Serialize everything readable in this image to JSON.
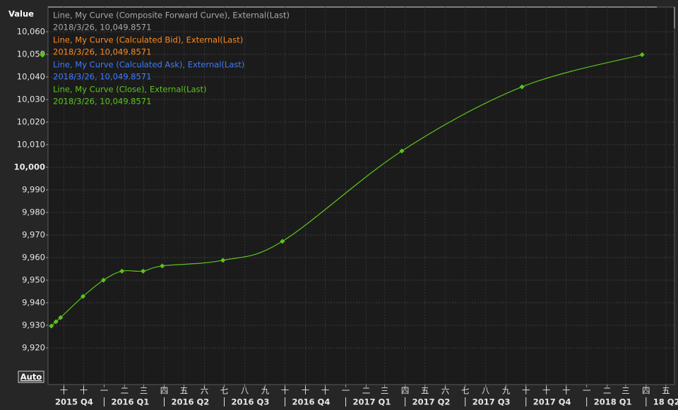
{
  "chart_data": {
    "type": "line",
    "ylabel": "Value",
    "button": "Auto",
    "grid": true,
    "ylim": [
      9903.75,
      10070.94
    ],
    "yticks": [
      {
        "value": 9920,
        "label": "9,920"
      },
      {
        "value": 9930,
        "label": "9,930"
      },
      {
        "value": 9940,
        "label": "9,940"
      },
      {
        "value": 9950,
        "label": "9,950"
      },
      {
        "value": 9960,
        "label": "9,960"
      },
      {
        "value": 9970,
        "label": "9,970"
      },
      {
        "value": 9980,
        "label": "9,980"
      },
      {
        "value": 9990,
        "label": "9,990"
      },
      {
        "value": 10000,
        "label": "10,000",
        "bold": true
      },
      {
        "value": 10010,
        "label": "10,010"
      },
      {
        "value": 10020,
        "label": "10,020"
      },
      {
        "value": 10030,
        "label": "10,030"
      },
      {
        "value": 10040,
        "label": "10,040"
      },
      {
        "value": 10050,
        "label": "10,050"
      },
      {
        "value": 10060,
        "label": "10,060"
      }
    ],
    "xlim": [
      "2015-10-08",
      "2018-05-14"
    ],
    "xticks": [
      {
        "value": "2015-11-01",
        "label": "十"
      },
      {
        "value": "2015-12-01",
        "label": "十"
      },
      {
        "value": "2016-01-01",
        "label": "一"
      },
      {
        "value": "2016-02-01",
        "label": "二"
      },
      {
        "value": "2016-03-01",
        "label": "三"
      },
      {
        "value": "2016-04-01",
        "label": "四"
      },
      {
        "value": "2016-05-01",
        "label": "五"
      },
      {
        "value": "2016-06-01",
        "label": "六"
      },
      {
        "value": "2016-07-01",
        "label": "七"
      },
      {
        "value": "2016-08-01",
        "label": "八"
      },
      {
        "value": "2016-09-01",
        "label": "九"
      },
      {
        "value": "2016-10-01",
        "label": "十"
      },
      {
        "value": "2016-11-01",
        "label": "十"
      },
      {
        "value": "2016-12-01",
        "label": "十"
      },
      {
        "value": "2017-01-01",
        "label": "一"
      },
      {
        "value": "2017-02-01",
        "label": "二"
      },
      {
        "value": "2017-03-01",
        "label": "三"
      },
      {
        "value": "2017-04-01",
        "label": "四"
      },
      {
        "value": "2017-05-01",
        "label": "五"
      },
      {
        "value": "2017-06-01",
        "label": "六"
      },
      {
        "value": "2017-07-01",
        "label": "七"
      },
      {
        "value": "2017-08-01",
        "label": "八"
      },
      {
        "value": "2017-09-01",
        "label": "九"
      },
      {
        "value": "2017-10-01",
        "label": "十"
      },
      {
        "value": "2017-11-01",
        "label": "十"
      },
      {
        "value": "2017-12-01",
        "label": "十"
      },
      {
        "value": "2018-01-01",
        "label": "一"
      },
      {
        "value": "2018-02-01",
        "label": "二"
      },
      {
        "value": "2018-03-01",
        "label": "三"
      },
      {
        "value": "2018-04-01",
        "label": "四"
      },
      {
        "value": "2018-05-01",
        "label": "五"
      }
    ],
    "quarters": [
      {
        "start": "2015-10-01",
        "label": "2015 Q4"
      },
      {
        "start": "2016-01-01",
        "label": "2016 Q1"
      },
      {
        "start": "2016-04-01",
        "label": "2016 Q2"
      },
      {
        "start": "2016-07-01",
        "label": "2016 Q3"
      },
      {
        "start": "2016-10-01",
        "label": "2016 Q4"
      },
      {
        "start": "2017-01-01",
        "label": "2017 Q1"
      },
      {
        "start": "2017-04-01",
        "label": "2017 Q2"
      },
      {
        "start": "2017-07-01",
        "label": "2017 Q3"
      },
      {
        "start": "2017-10-01",
        "label": "2017 Q4"
      },
      {
        "start": "2018-01-01",
        "label": "2018 Q1"
      },
      {
        "start": "2018-04-01",
        "label": "18 Q2"
      }
    ],
    "readouts": [
      {
        "name": "Line, My Curve (Composite Forward Curve), External(Last)",
        "text": "2018/3/26, 10,049.8571",
        "color": "#a8a8a8"
      },
      {
        "name": "Line, My Curve (Calculated Bid), External(Last)",
        "text": "2018/3/26, 10,049.8571",
        "color": "#ff8a1e"
      },
      {
        "name": "Line, My Curve (Calculated Ask), External(Last)",
        "text": "2018/3/26, 10,049.8571",
        "color": "#3f7cff"
      }
    ],
    "x": [
      "2015-10-13",
      "2015-10-20",
      "2015-10-27",
      "2015-11-30",
      "2015-12-31",
      "2016-01-28",
      "2016-02-29",
      "2016-03-29",
      "2016-06-29",
      "2016-09-27",
      "2017-03-27",
      "2017-09-25",
      "2018-03-26"
    ],
    "series": [
      {
        "name": "Line, My Curve (Close), External(Last)",
        "readout": "2018/3/26, 10,049.8571",
        "color": "#5cc41c",
        "values": [
          9929.7,
          9931.6,
          9933.4,
          9942.8,
          9950.0,
          9954.0,
          9954.0,
          9956.3,
          9958.8,
          9967.2,
          10007.2,
          10035.6,
          10049.8571
        ]
      }
    ]
  }
}
